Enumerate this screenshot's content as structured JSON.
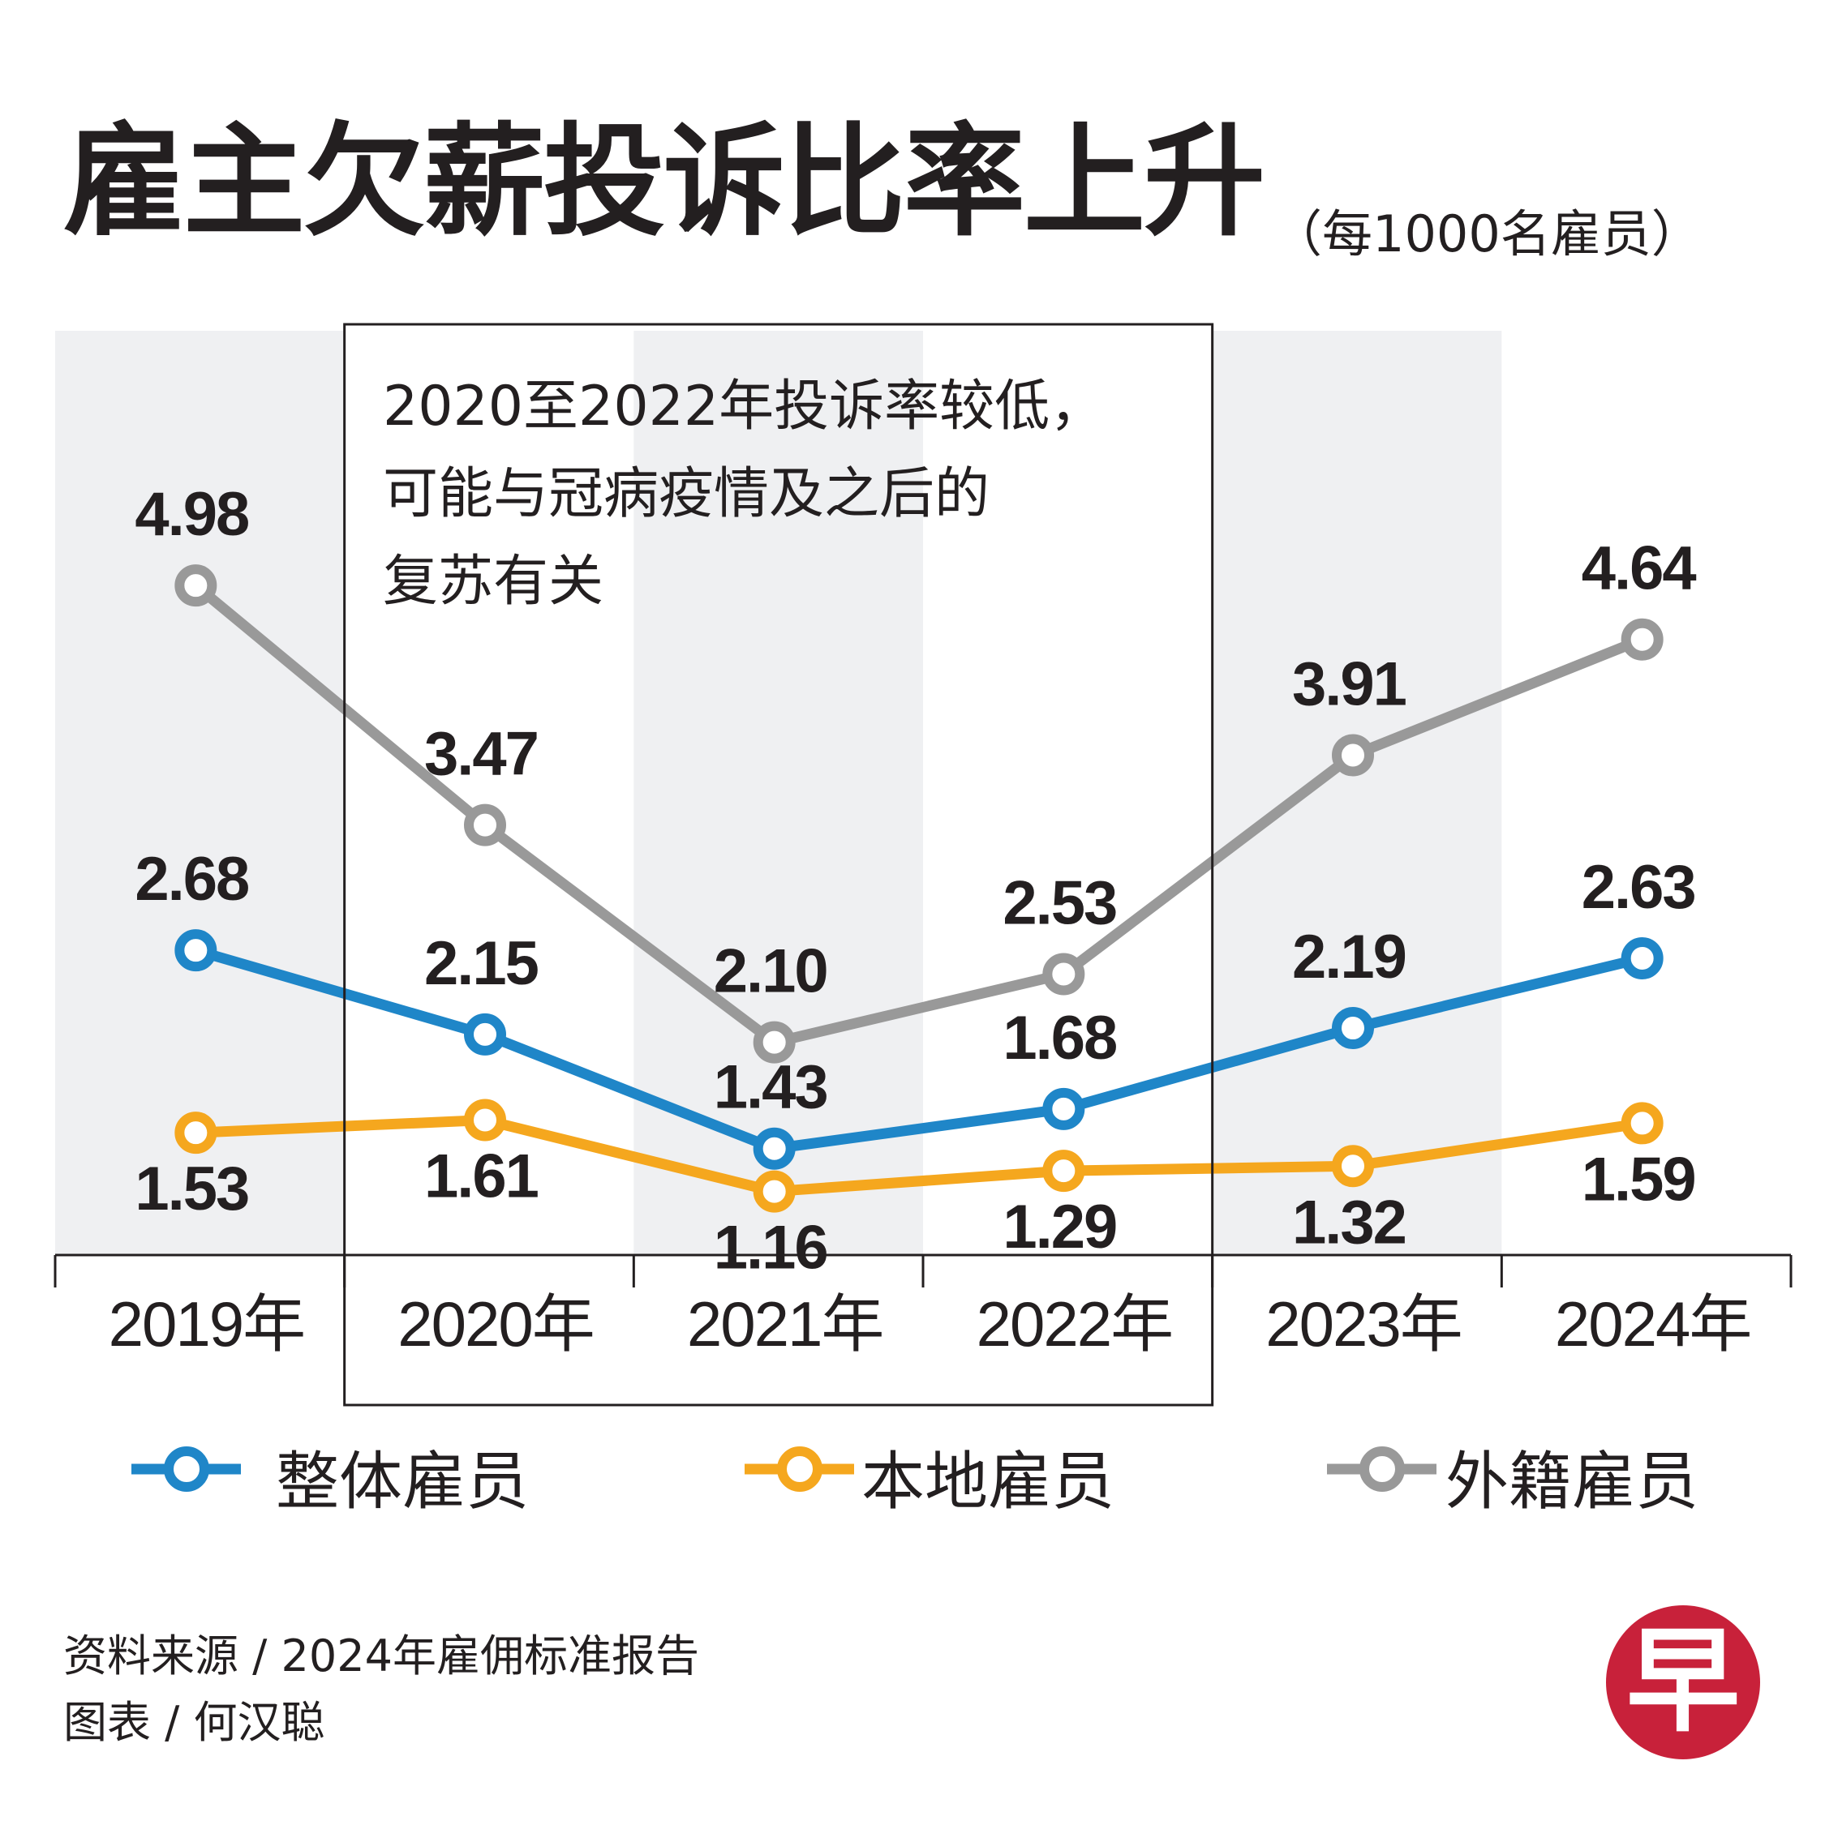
{
  "title": "雇主欠薪投诉比率上升",
  "subtitle": "（每1000名雇员）",
  "annotation": [
    "2020至2022年投诉率较低，",
    "可能与冠病疫情及之后的",
    "复苏有关"
  ],
  "footer": {
    "source": "资料来源 / 2024年雇佣标准报告",
    "credit": "图表 / 何汉聪"
  },
  "logo_text": "早",
  "colors": {
    "overall": "#1f86c8",
    "local": "#f5a71e",
    "foreign": "#999999",
    "band": "#eff0f2",
    "text": "#231f20"
  },
  "chart_data": {
    "type": "line",
    "title": "雇主欠薪投诉比率上升",
    "ylabel": "每1000名雇员",
    "xlabel": "",
    "categories": [
      "2019年",
      "2020年",
      "2021年",
      "2022年",
      "2023年",
      "2024年"
    ],
    "series": [
      {
        "name": "整体雇员",
        "values": [
          2.68,
          2.15,
          1.43,
          1.68,
          2.19,
          2.63
        ],
        "labels": [
          "2.68",
          "2.15",
          "1.43",
          "1.68",
          "2.19",
          "2.63"
        ]
      },
      {
        "name": "本地雇员",
        "values": [
          1.53,
          1.61,
          1.16,
          1.29,
          1.32,
          1.59
        ],
        "labels": [
          "1.53",
          "1.61",
          "1.16",
          "1.29",
          "1.32",
          "1.59"
        ]
      },
      {
        "name": "外籍雇员",
        "values": [
          4.98,
          3.47,
          2.1,
          2.53,
          3.91,
          4.64
        ],
        "labels": [
          "4.98",
          "3.47",
          "2.10",
          "2.53",
          "3.91",
          "4.64"
        ]
      }
    ],
    "ylim": [
      0.8,
      5.4
    ],
    "grid": false,
    "legend": "bottom",
    "highlight_range": [
      "2020年",
      "2022年"
    ]
  }
}
